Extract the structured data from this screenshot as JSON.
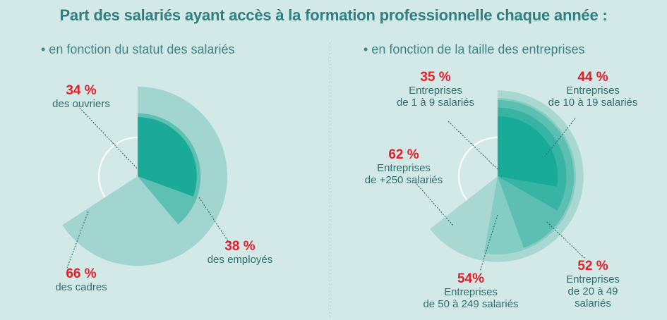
{
  "title": "Part des salariés ayant accès à la formation professionnelle chaque année :",
  "chart_data": [
    {
      "type": "pie",
      "title": "• en fonction du statut des salariés",
      "series": [
        {
          "key": "ouvriers",
          "pct_label": "34 %",
          "value": 34,
          "lines": [
            "des ouvriers"
          ],
          "color": "#1baa97"
        },
        {
          "key": "employes",
          "pct_label": "38 %",
          "value": 38,
          "lines": [
            "des employés"
          ],
          "color": "#5ec0b3"
        },
        {
          "key": "cadres",
          "pct_label": "66 %",
          "value": 66,
          "lines": [
            "des cadres"
          ],
          "color": "#a2d5cf"
        }
      ]
    },
    {
      "type": "pie",
      "title": "• en fonction de la taille des entreprises",
      "series": [
        {
          "key": "e1-9",
          "pct_label": "35 %",
          "value": 35,
          "lines": [
            "Entreprises",
            "de 1 à 9 salariés"
          ],
          "color": "#18ac98"
        },
        {
          "key": "e10-19",
          "pct_label": "44 %",
          "value": 44,
          "lines": [
            "Entreprises",
            "de 10 à 19 salariés"
          ],
          "color": "#38b4a4"
        },
        {
          "key": "e20-49",
          "pct_label": "52 %",
          "value": 52,
          "lines": [
            "Entreprises",
            "de 20 à 49",
            "salariés"
          ],
          "color": "#5cbfb2"
        },
        {
          "key": "e50-249",
          "pct_label": "54%",
          "value": 54,
          "lines": [
            "Entreprises",
            "de 50 à 249 salariés"
          ],
          "color": "#84cdc2"
        },
        {
          "key": "e250",
          "pct_label": "62 %",
          "value": 62,
          "lines": [
            "Entreprises",
            "de +250 salariés"
          ],
          "color": "#a8d8d1"
        }
      ]
    }
  ]
}
